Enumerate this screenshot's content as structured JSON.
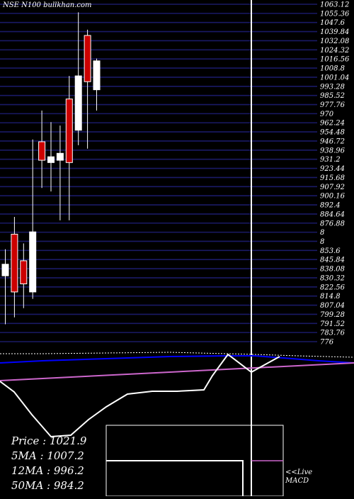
{
  "ticker": "NSE N100",
  "watermark": "bullkhan.com",
  "colors": {
    "bg": "#000000",
    "grid": "#1a1a66",
    "bull": "#ffffff",
    "bear": "#cc0000",
    "ma": "#0000ff",
    "macd": "#cc66cc"
  },
  "stats": [
    {
      "label": "Price",
      "value": "1021.9"
    },
    {
      "label": "5MA",
      "value": "1007.2"
    },
    {
      "label": "12MA",
      "value": "996.2"
    },
    {
      "label": "50MA",
      "value": "984.2"
    }
  ],
  "live_label": "<<Live",
  "macd_label": "MACD",
  "chart_data": {
    "type": "candlestick",
    "y_axis_side": "right",
    "ylim": [
      775,
      1067
    ],
    "price_labels": [
      "1063.12",
      "1055.36",
      "1047.6",
      "1039.84",
      "1032.08",
      "1024.32",
      "1016.56",
      "1008.8",
      "1001.04",
      "993.28",
      "985.52",
      "977.76",
      "970",
      "962.24",
      "954.48",
      "946.72",
      "938.96",
      "931.2",
      "923.44",
      "915.68",
      "907.92",
      "900.16",
      "892.4",
      "884.64",
      "876.88",
      "8",
      "8",
      "853.6",
      "845.84",
      "838.08",
      "830.32",
      "822.56",
      "814.8",
      "807.04",
      "799.28",
      "791.52",
      "783.76",
      "776"
    ],
    "candles": [
      {
        "open": 832,
        "high": 855,
        "low": 790,
        "close": 842,
        "dir": "up"
      },
      {
        "open": 868,
        "high": 883,
        "low": 796,
        "close": 818,
        "dir": "down"
      },
      {
        "open": 845,
        "high": 860,
        "low": 804,
        "close": 825,
        "dir": "down"
      },
      {
        "open": 818,
        "high": 950,
        "low": 812,
        "close": 870,
        "dir": "up"
      },
      {
        "open": 948,
        "high": 975,
        "low": 908,
        "close": 932,
        "dir": "down"
      },
      {
        "open": 930,
        "high": 965,
        "low": 905,
        "close": 935,
        "dir": "up"
      },
      {
        "open": 932,
        "high": 962,
        "low": 880,
        "close": 938,
        "dir": "up"
      },
      {
        "open": 985,
        "high": 1005,
        "low": 880,
        "close": 930,
        "dir": "down"
      },
      {
        "open": 958,
        "high": 1060,
        "low": 945,
        "close": 1005,
        "dir": "up"
      },
      {
        "open": 1040,
        "high": 1045,
        "low": 942,
        "close": 1000,
        "dir": "down"
      },
      {
        "open": 993,
        "high": 1020,
        "low": 975,
        "close": 1018,
        "dir": "up"
      }
    ]
  }
}
